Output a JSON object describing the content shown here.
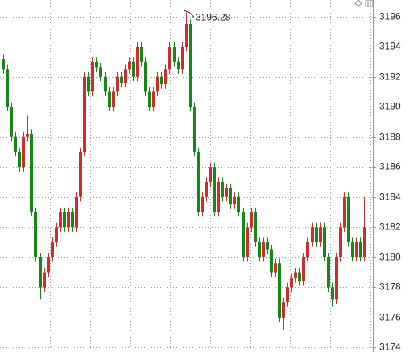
{
  "chart_data": {
    "type": "candlestick",
    "up_color": "#d42a2a",
    "down_color": "#138a13",
    "open": [
      3193.2,
      3192.5,
      3190,
      3188,
      3187,
      3186,
      3188,
      3188.2,
      3183,
      3180,
      3178,
      3179,
      3180,
      3181,
      3182,
      3183,
      3182,
      3183,
      3182,
      3184,
      3187,
      3192,
      3191,
      3193,
      3192.6,
      3192,
      3191,
      3190,
      3191,
      3192,
      3191.6,
      3192.5,
      3193,
      3192,
      3194,
      3193,
      3191,
      3190,
      3191,
      3192,
      3191.5,
      3192.5,
      3194,
      3193,
      3192.5,
      3194,
      3195.5,
      3190,
      3187,
      3183,
      3184,
      3185,
      3186,
      3183,
      3185,
      3184,
      3184.6,
      3183.5,
      3184,
      3183,
      3180,
      3182,
      3183,
      3181,
      3180,
      3181,
      3180.5,
      3179,
      3179.6,
      3176,
      3177,
      3178,
      3178.6,
      3179,
      3178.4,
      3180,
      3181,
      3182,
      3181,
      3182,
      3180,
      3178,
      3177.2,
      3180,
      3182,
      3184,
      3181,
      3180,
      3181,
      3180
    ],
    "high": [
      3193.5,
      3192.8,
      3190.3,
      3188.3,
      3187.3,
      3188.3,
      3189.4,
      3188.5,
      3183.3,
      3180.3,
      3179.3,
      3180.3,
      3181.3,
      3182.3,
      3183.3,
      3183.3,
      3183.3,
      3183.3,
      3184.3,
      3187.3,
      3192.3,
      3192.3,
      3193.3,
      3193.3,
      3192.9,
      3192.3,
      3191.3,
      3191.3,
      3192.3,
      3192.3,
      3192.8,
      3193.3,
      3193.3,
      3194.3,
      3194.3,
      3193.3,
      3191.3,
      3191.3,
      3192.3,
      3192.3,
      3192.8,
      3194.3,
      3194.3,
      3193.3,
      3194.3,
      3196.28,
      3195.8,
      3190.3,
      3187.3,
      3184.3,
      3185.3,
      3186.3,
      3186.3,
      3185.3,
      3185.3,
      3184.9,
      3184.9,
      3184.3,
      3184.3,
      3183.3,
      3182.3,
      3183.3,
      3183.3,
      3181.3,
      3181.3,
      3181.3,
      3180.8,
      3179.9,
      3179.9,
      3177.3,
      3178.3,
      3178.9,
      3179.3,
      3179.3,
      3180.3,
      3181.3,
      3182.3,
      3182.3,
      3182.3,
      3182.3,
      3180.3,
      3178.3,
      3180.3,
      3182.3,
      3184.3,
      3184.3,
      3181.3,
      3181.3,
      3181.3,
      3184
    ],
    "low": [
      3192.2,
      3189.7,
      3187.7,
      3186.7,
      3185.7,
      3185.7,
      3187.7,
      3182.7,
      3179.7,
      3177.2,
      3177.7,
      3178.7,
      3179.7,
      3180.7,
      3181.7,
      3181.7,
      3181.7,
      3181.7,
      3181.7,
      3183.7,
      3186.7,
      3190.7,
      3190.7,
      3192.3,
      3191.7,
      3190.7,
      3189.7,
      3189.7,
      3190.7,
      3191.3,
      3191.3,
      3192.2,
      3191.7,
      3191.7,
      3192.7,
      3190.7,
      3189.7,
      3189.7,
      3190.7,
      3191.2,
      3191.2,
      3192.2,
      3192.7,
      3192.2,
      3192.2,
      3193.7,
      3189.7,
      3186.7,
      3182.7,
      3182.7,
      3183.7,
      3184.7,
      3182.7,
      3182.7,
      3183.7,
      3183.7,
      3183.2,
      3183.2,
      3182.7,
      3179.7,
      3179.7,
      3181.7,
      3180.7,
      3179.7,
      3179.7,
      3180.2,
      3178.7,
      3178.7,
      3175.7,
      3175.2,
      3176.7,
      3177.7,
      3178.3,
      3178.1,
      3178.1,
      3179.7,
      3180.7,
      3180.7,
      3180.7,
      3179.7,
      3177.7,
      3176.7,
      3176.9,
      3179.7,
      3181.7,
      3180.7,
      3179.7,
      3179.7,
      3179.7,
      3179.7
    ],
    "close": [
      3192.5,
      3190,
      3188,
      3187,
      3186,
      3188,
      3188.2,
      3183,
      3180,
      3178,
      3179,
      3180,
      3181,
      3182,
      3183,
      3182,
      3183,
      3182,
      3184,
      3187,
      3192,
      3191,
      3193,
      3192.6,
      3192,
      3191,
      3190,
      3191,
      3192,
      3191.6,
      3192.5,
      3193,
      3192,
      3194,
      3193,
      3191,
      3190,
      3191,
      3192,
      3191.5,
      3192.5,
      3194,
      3193,
      3192.5,
      3194,
      3195.5,
      3190,
      3187,
      3183,
      3184,
      3185,
      3186,
      3183,
      3185,
      3184,
      3184.6,
      3183.5,
      3184,
      3183,
      3180,
      3182,
      3183,
      3181,
      3180,
      3181,
      3180.5,
      3179,
      3179.6,
      3176,
      3177,
      3178,
      3178.6,
      3179,
      3178.4,
      3180,
      3181,
      3182,
      3181,
      3182,
      3180,
      3178,
      3177.2,
      3180,
      3182,
      3184,
      3181,
      3180,
      3181,
      3180,
      3182
    ],
    "ylim": [
      3173.7,
      3197.1
    ],
    "yticks": [
      3174,
      3176,
      3178,
      3180,
      3182,
      3184,
      3186,
      3188,
      3190,
      3192,
      3194,
      3196
    ],
    "grid": true
  }
}
